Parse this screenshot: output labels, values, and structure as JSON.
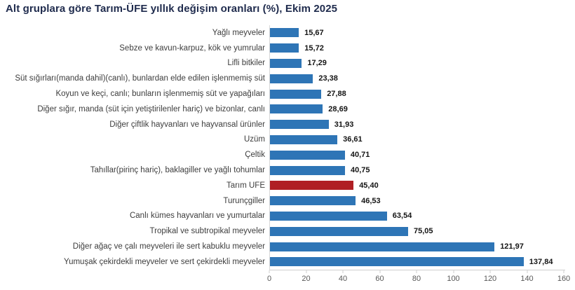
{
  "chart_data": {
    "type": "bar",
    "orientation": "horizontal",
    "title": "Alt gruplara göre Tarım-ÜFE yıllık değişim oranları (%), Ekim 2025",
    "categories": [
      "Yağlı meyveler",
      "Sebze ve kavun-karpuz, kök ve yumrular",
      "Lifli bitkiler",
      "Süt sığırları(manda dahil)(canlı), bunlardan elde edilen işlenmemiş süt",
      "Koyun ve keçi, canlı; bunların işlenmemiş süt ve yapağıları",
      "Diğer sığır, manda (süt için yetiştirilenler hariç) ve bizonlar, canlı",
      "Diğer çiftlik hayvanları ve hayvansal ürünler",
      "Üzüm",
      "Çeltik",
      "Tahıllar(pirinç hariç), baklagiller ve yağlı tohumlar",
      "Tarım ÜFE",
      "Turunçgiller",
      "Canlı kümes hayvanları ve yumurtalar",
      "Tropikal ve subtropikal meyveler",
      "Diğer ağaç ve çalı meyveleri ile sert kabuklu meyveler",
      "Yumuşak çekirdekli meyveler ve sert çekirdekli meyveler"
    ],
    "values": [
      15.67,
      15.72,
      17.29,
      23.38,
      27.88,
      28.69,
      31.93,
      36.61,
      40.71,
      40.75,
      45.4,
      46.53,
      63.54,
      75.05,
      121.97,
      137.84
    ],
    "value_labels": [
      "15,67",
      "15,72",
      "17,29",
      "23,38",
      "27,88",
      "28,69",
      "31,93",
      "36,61",
      "40,71",
      "40,75",
      "45,40",
      "46,53",
      "63,54",
      "75,05",
      "121,97",
      "137,84"
    ],
    "highlight_index": 10,
    "bar_color": "#2E75B6",
    "highlight_color": "#B01F24",
    "xlim": [
      0,
      160
    ],
    "x_ticks": [
      0,
      20,
      40,
      60,
      80,
      100,
      120,
      140,
      160
    ],
    "grid": false,
    "legend": "none",
    "data_labels": true
  }
}
